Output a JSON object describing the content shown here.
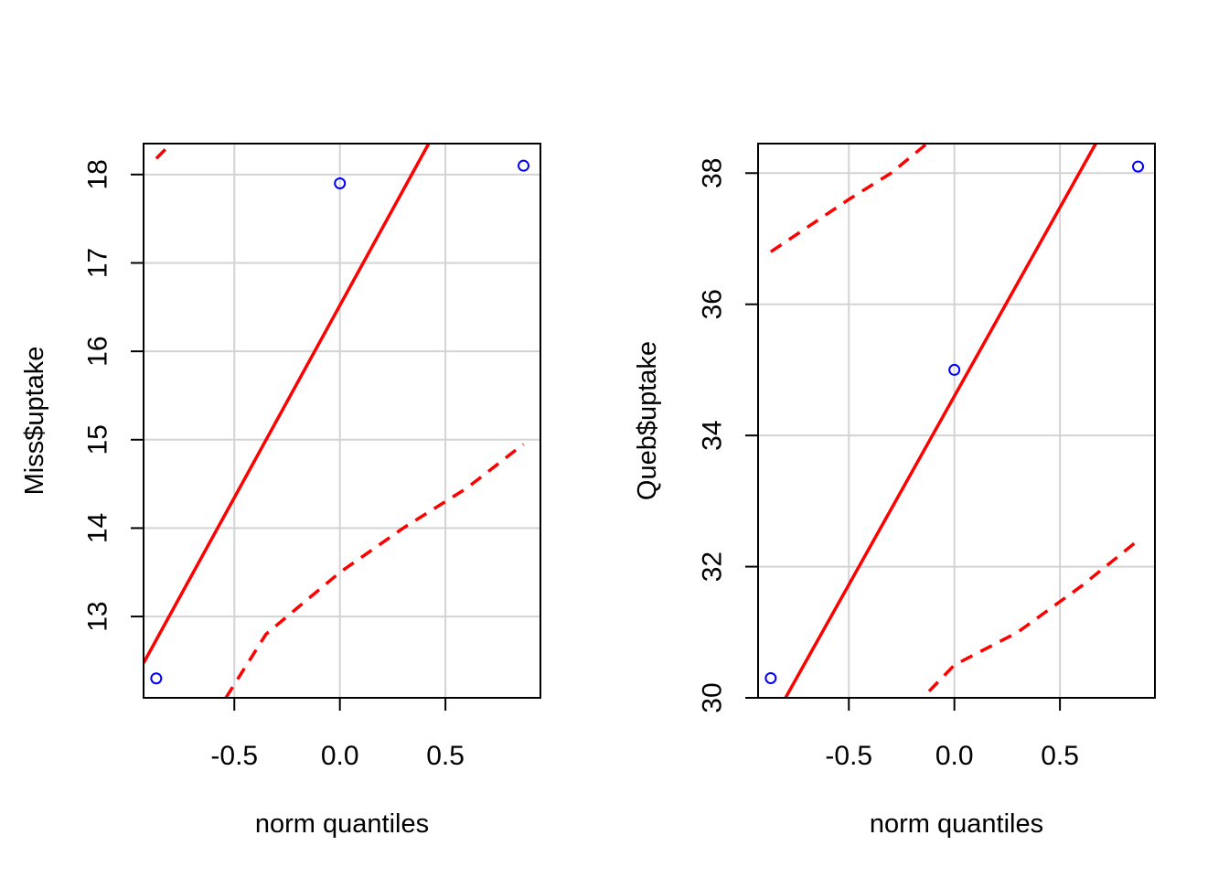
{
  "colors": {
    "point": "#0000ff",
    "line": "#ff0000",
    "grid": "#d3d3d3",
    "axis": "#000000"
  },
  "chart_data": [
    {
      "type": "scatter",
      "name": "qq-miss",
      "xlabel": "norm quantiles",
      "ylabel": "Miss$uptake",
      "xlim": [
        -0.93,
        0.95
      ],
      "ylim": [
        12.08,
        18.35
      ],
      "xticks": [
        -0.5,
        0.0,
        0.5
      ],
      "xtick_labels": [
        "-0.5",
        "0.0",
        "0.5"
      ],
      "yticks": [
        13,
        14,
        15,
        16,
        17,
        18
      ],
      "ytick_labels": [
        "13",
        "14",
        "15",
        "16",
        "17",
        "18"
      ],
      "grid": true,
      "points": [
        {
          "x": -0.87,
          "y": 12.3
        },
        {
          "x": 0.0,
          "y": 17.9
        },
        {
          "x": 0.87,
          "y": 18.1
        }
      ],
      "reference_line": {
        "slope": 4.35,
        "intercept": 16.52,
        "style": "solid"
      },
      "envelope_upper": {
        "style": "dashed",
        "x": [
          -0.87,
          -0.8
        ],
        "y": [
          18.18,
          18.35
        ]
      },
      "envelope_lower": {
        "style": "dashed",
        "x": [
          -0.54,
          -0.35,
          -0.2,
          0.0,
          0.3,
          0.6,
          0.87
        ],
        "y": [
          12.08,
          12.8,
          13.1,
          13.5,
          14.0,
          14.45,
          14.95
        ]
      }
    },
    {
      "type": "scatter",
      "name": "qq-queb",
      "xlabel": "norm quantiles",
      "ylabel": "Queb$uptake",
      "xlim": [
        -0.93,
        0.95
      ],
      "ylim": [
        30.0,
        38.45
      ],
      "xticks": [
        -0.5,
        0.0,
        0.5
      ],
      "xtick_labels": [
        "-0.5",
        "0.0",
        "0.5"
      ],
      "yticks": [
        30,
        32,
        34,
        36,
        38
      ],
      "ytick_labels": [
        "30",
        "32",
        "34",
        "36",
        "38"
      ],
      "grid": true,
      "points": [
        {
          "x": -0.87,
          "y": 30.3
        },
        {
          "x": 0.0,
          "y": 35.0
        },
        {
          "x": 0.87,
          "y": 38.1
        }
      ],
      "reference_line": {
        "slope": 5.75,
        "intercept": 34.6,
        "style": "solid"
      },
      "envelope_upper": {
        "style": "dashed",
        "x": [
          -0.87,
          -0.5,
          -0.3,
          -0.13
        ],
        "y": [
          36.8,
          37.6,
          38.0,
          38.45
        ]
      },
      "envelope_lower": {
        "style": "dashed",
        "x": [
          -0.12,
          0.0,
          0.3,
          0.6,
          0.87
        ],
        "y": [
          30.1,
          30.5,
          31.0,
          31.7,
          32.4
        ]
      }
    }
  ]
}
